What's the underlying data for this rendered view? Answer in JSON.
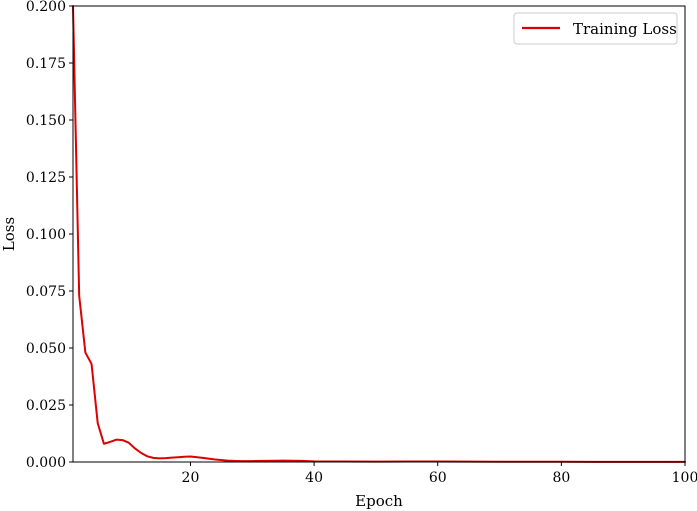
{
  "chart_data": {
    "type": "line",
    "title": "",
    "xlabel": "Epoch",
    "ylabel": "Loss",
    "xlim": [
      1,
      100
    ],
    "ylim": [
      0,
      0.2
    ],
    "x_ticks": [
      20,
      40,
      60,
      80,
      100
    ],
    "x_tick_labels": [
      "20",
      "40",
      "60",
      "80",
      "100"
    ],
    "y_ticks": [
      0,
      0.025,
      0.05,
      0.075,
      0.1,
      0.125,
      0.15,
      0.175,
      0.2
    ],
    "y_tick_labels": [
      "0.000",
      "0.025",
      "0.050",
      "0.075",
      "0.100",
      "0.125",
      "0.150",
      "0.175",
      "0.200"
    ],
    "grid": false,
    "legend_position": "top-right",
    "series": [
      {
        "name": "Training Loss",
        "color": "#dd0000",
        "x": [
          1,
          2,
          3,
          4,
          5,
          6,
          7,
          8,
          9,
          10,
          11,
          12,
          13,
          14,
          15,
          16,
          17,
          18,
          19,
          20,
          22,
          24,
          26,
          28,
          30,
          32,
          35,
          38,
          40,
          45,
          50,
          55,
          60,
          65,
          70,
          75,
          80,
          85,
          90,
          95,
          100
        ],
        "y": [
          0.2,
          0.073,
          0.048,
          0.043,
          0.017,
          0.008,
          0.0088,
          0.0098,
          0.0096,
          0.0085,
          0.006,
          0.004,
          0.0025,
          0.0018,
          0.0016,
          0.0017,
          0.0019,
          0.0021,
          0.0023,
          0.0024,
          0.0018,
          0.0011,
          0.0006,
          0.0004,
          0.0004,
          0.0005,
          0.0006,
          0.0005,
          0.0003,
          0.0002,
          0.00015,
          0.0002,
          0.0002,
          0.00015,
          0.0001,
          0.0001,
          0.0001,
          8e-05,
          5e-05,
          5e-05,
          3e-05
        ]
      }
    ]
  }
}
